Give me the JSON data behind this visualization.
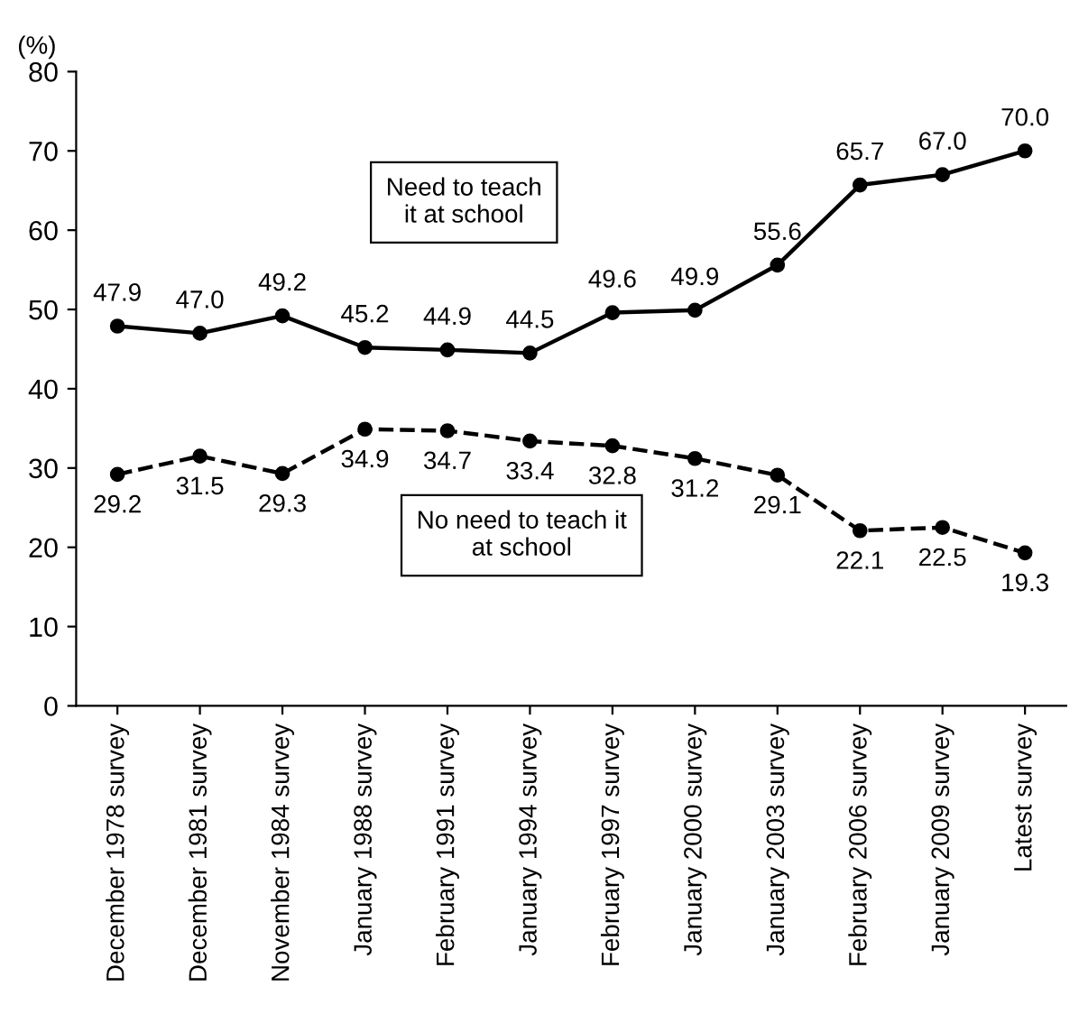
{
  "chart_data": {
    "type": "line",
    "ylabel": "(%)",
    "categories": [
      "December 1978 survey",
      "December 1981 survey",
      "November 1984 survey",
      "January 1988 survey",
      "February 1991 survey",
      "January 1994 survey",
      "February 1997 survey",
      "January 2000 survey",
      "January 2003 survey",
      "February 2006 survey",
      "January 2009 survey",
      "Latest survey"
    ],
    "series": [
      {
        "name": "Need to teach\nit at school",
        "color": "#000000",
        "line_style": "solid",
        "values": [
          47.9,
          47.0,
          49.2,
          45.2,
          44.9,
          44.5,
          49.6,
          49.9,
          55.6,
          65.7,
          67.0,
          70.0
        ],
        "value_labels": [
          "47.9",
          "47.0",
          "49.2",
          "45.2",
          "44.9",
          "44.5",
          "49.6",
          "49.9",
          "55.6",
          "65.7",
          "67.0",
          "70.0"
        ]
      },
      {
        "name": "No need to teach it\nat school",
        "color": "#000000",
        "line_style": "dashed",
        "values": [
          29.2,
          31.5,
          29.3,
          34.9,
          34.7,
          33.4,
          32.8,
          31.2,
          29.1,
          22.1,
          22.5,
          19.3
        ],
        "value_labels": [
          "29.2",
          "31.5",
          "29.3",
          "34.9",
          "34.7",
          "33.4",
          "32.8",
          "31.2",
          "29.1",
          "22.1",
          "22.5",
          "19.3"
        ]
      }
    ],
    "marker": "circle",
    "ylim": [
      0,
      80
    ],
    "yticks": [
      0,
      10,
      20,
      30,
      40,
      50,
      60,
      70,
      80
    ],
    "grid": false,
    "legend": false
  }
}
